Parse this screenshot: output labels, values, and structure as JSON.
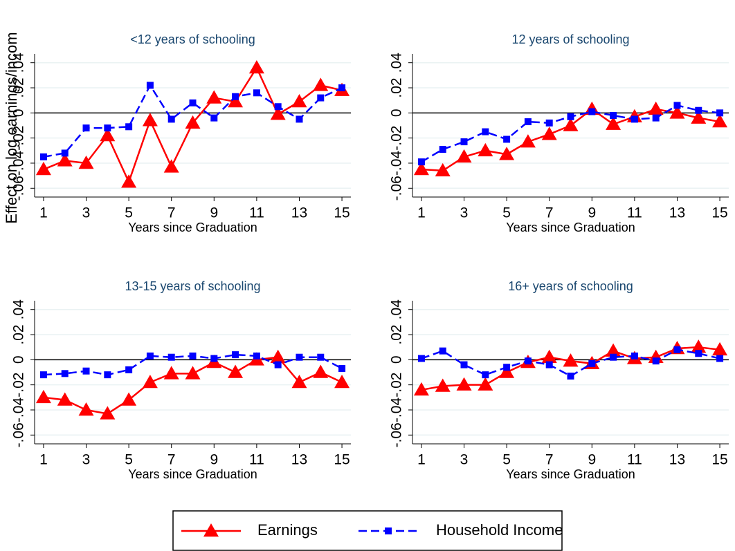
{
  "chart_data": [
    {
      "type": "line",
      "title": "<12 years of schooling",
      "xlabel": "Years since Graduation",
      "ylabel": "Effect on log earnings/incom",
      "x": [
        1,
        2,
        3,
        4,
        5,
        6,
        7,
        8,
        9,
        10,
        11,
        12,
        13,
        14,
        15
      ],
      "xlim": [
        0.58,
        15.42
      ],
      "xticks": [
        1,
        3,
        5,
        7,
        9,
        11,
        13,
        15
      ],
      "ylim": [
        -0.067,
        0.047
      ],
      "yticks": [
        {
          "value": -0.06,
          "label": "-.06"
        },
        {
          "value": -0.04,
          "label": "-.04"
        },
        {
          "value": -0.02,
          "label": "-.02"
        },
        0,
        {
          "value": 0.02,
          "label": ".02"
        },
        {
          "value": 0.04,
          "label": ".04"
        }
      ],
      "grid": true,
      "zero_line": true,
      "legend": "bottom",
      "series": [
        {
          "name": "Earnings",
          "color": "#ff0000",
          "marker": "triangle",
          "linestyle": "solid",
          "values": [
            -0.045,
            -0.038,
            -0.04,
            -0.018,
            -0.055,
            -0.006,
            -0.043,
            -0.008,
            0.012,
            0.009,
            0.036,
            -0.001,
            0.009,
            0.022,
            0.018
          ]
        },
        {
          "name": "Household Income",
          "color": "#0000ff",
          "marker": "square",
          "linestyle": "dashed",
          "values": [
            -0.035,
            -0.032,
            -0.012,
            -0.012,
            -0.011,
            0.022,
            -0.005,
            0.008,
            -0.004,
            0.013,
            0.016,
            0.005,
            -0.005,
            0.012,
            0.02
          ]
        }
      ]
    },
    {
      "type": "line",
      "title": "12 years of schooling",
      "xlabel": "Years since Graduation",
      "x": [
        1,
        2,
        3,
        4,
        5,
        6,
        7,
        8,
        9,
        10,
        11,
        12,
        13,
        14,
        15
      ],
      "xlim": [
        0.58,
        15.42
      ],
      "xticks": [
        1,
        3,
        5,
        7,
        9,
        11,
        13,
        15
      ],
      "ylim": [
        -0.067,
        0.047
      ],
      "yticks": [
        {
          "value": -0.06,
          "label": "-.06"
        },
        {
          "value": -0.04,
          "label": "-.04"
        },
        {
          "value": -0.02,
          "label": "-.02"
        },
        0,
        {
          "value": 0.02,
          "label": ".02"
        },
        {
          "value": 0.04,
          "label": ".04"
        }
      ],
      "grid": true,
      "zero_line": true,
      "series": [
        {
          "name": "Earnings",
          "color": "#ff0000",
          "marker": "triangle",
          "linestyle": "solid",
          "values": [
            -0.045,
            -0.046,
            -0.035,
            -0.03,
            -0.033,
            -0.023,
            -0.017,
            -0.01,
            0.003,
            -0.009,
            -0.003,
            0.003,
            0.0,
            -0.004,
            -0.007
          ]
        },
        {
          "name": "Household Income",
          "color": "#0000ff",
          "marker": "square",
          "linestyle": "dashed",
          "values": [
            -0.039,
            -0.029,
            -0.023,
            -0.015,
            -0.021,
            -0.007,
            -0.008,
            -0.003,
            0.001,
            -0.002,
            -0.005,
            -0.004,
            0.006,
            0.002,
            0.0
          ]
        }
      ]
    },
    {
      "type": "line",
      "title": "13-15 years of schooling",
      "xlabel": "Years since Graduation",
      "x": [
        1,
        2,
        3,
        4,
        5,
        6,
        7,
        8,
        9,
        10,
        11,
        12,
        13,
        14,
        15
      ],
      "xlim": [
        0.58,
        15.42
      ],
      "xticks": [
        1,
        3,
        5,
        7,
        9,
        11,
        13,
        15
      ],
      "ylim": [
        -0.067,
        0.047
      ],
      "yticks": [
        {
          "value": -0.06,
          "label": "-.06"
        },
        {
          "value": -0.04,
          "label": "-.04"
        },
        {
          "value": -0.02,
          "label": "-.02"
        },
        0,
        {
          "value": 0.02,
          "label": ".02"
        },
        {
          "value": 0.04,
          "label": ".04"
        }
      ],
      "grid": true,
      "zero_line": true,
      "series": [
        {
          "name": "Earnings",
          "color": "#ff0000",
          "marker": "triangle",
          "linestyle": "solid",
          "values": [
            -0.03,
            -0.032,
            -0.04,
            -0.043,
            -0.032,
            -0.018,
            -0.011,
            -0.011,
            -0.002,
            -0.01,
            0.0,
            0.002,
            -0.018,
            -0.01,
            -0.018
          ]
        },
        {
          "name": "Household Income",
          "color": "#0000ff",
          "marker": "square",
          "linestyle": "dashed",
          "values": [
            -0.012,
            -0.011,
            -0.009,
            -0.012,
            -0.008,
            0.003,
            0.002,
            0.003,
            0.001,
            0.004,
            0.003,
            -0.004,
            0.002,
            0.002,
            -0.007
          ]
        }
      ]
    },
    {
      "type": "line",
      "title": "16+ years of schooling",
      "xlabel": "Years since Graduation",
      "x": [
        1,
        2,
        3,
        4,
        5,
        6,
        7,
        8,
        9,
        10,
        11,
        12,
        13,
        14,
        15
      ],
      "xlim": [
        0.58,
        15.42
      ],
      "xticks": [
        1,
        3,
        5,
        7,
        9,
        11,
        13,
        15
      ],
      "ylim": [
        -0.067,
        0.047
      ],
      "yticks": [
        {
          "value": -0.06,
          "label": "-.06"
        },
        {
          "value": -0.04,
          "label": "-.04"
        },
        {
          "value": -0.02,
          "label": "-.02"
        },
        0,
        {
          "value": 0.02,
          "label": ".02"
        },
        {
          "value": 0.04,
          "label": ".04"
        }
      ],
      "grid": true,
      "zero_line": true,
      "series": [
        {
          "name": "Earnings",
          "color": "#ff0000",
          "marker": "triangle",
          "linestyle": "solid",
          "values": [
            -0.024,
            -0.021,
            -0.02,
            -0.02,
            -0.01,
            -0.002,
            0.002,
            -0.001,
            -0.003,
            0.007,
            0.001,
            0.002,
            0.009,
            0.01,
            0.008
          ]
        },
        {
          "name": "Household Income",
          "color": "#0000ff",
          "marker": "square",
          "linestyle": "dashed",
          "values": [
            0.001,
            0.007,
            -0.004,
            -0.012,
            -0.006,
            -0.001,
            -0.004,
            -0.013,
            -0.003,
            0.002,
            0.003,
            -0.001,
            0.008,
            0.005,
            0.001
          ]
        }
      ]
    }
  ]
}
